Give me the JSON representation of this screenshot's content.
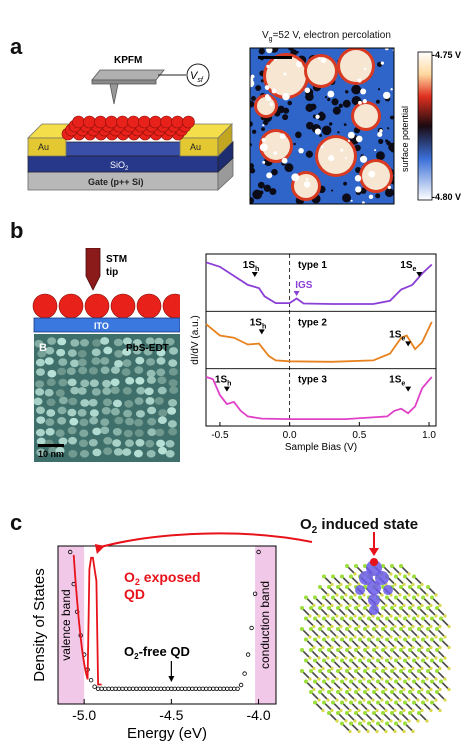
{
  "panel_a": {
    "letter": "a",
    "device": {
      "kpfm": "KPFM",
      "vsf_main": "V",
      "vsf_sub": "sf",
      "electrode_left": "Au",
      "electrode_right": "Au",
      "oxide_main": "SiO",
      "oxide_sub": "2",
      "gate": "Gate (p++ Si)"
    },
    "map": {
      "title_v": "V",
      "title_sub": "g",
      "title_rest": "=52 V, electron percolation",
      "ylabel": "surface potential",
      "scale_max": "-4.75 V",
      "scale_min": "-4.80 V"
    }
  },
  "panel_b": {
    "letter": "b",
    "stm": {
      "tip_line1": "STM",
      "tip_line2": "tip",
      "substrate": "ITO",
      "image_letter": "B",
      "image_label": "PbS-EDT",
      "scalebar": "10 nm"
    },
    "spectra": {
      "ylabel": "dI/dV (a.u.)",
      "xlabel": "Sample Bias (V)",
      "xticks": [
        "-0.5",
        "0.0",
        "0.5",
        "1.0"
      ],
      "peak_h_main": "1S",
      "peak_h_sub": "h",
      "peak_e_main": "1S",
      "peak_e_sub": "e",
      "igs": "IGS",
      "types": [
        "type 1",
        "type 2",
        "type 3"
      ],
      "colors": [
        "#8b3fd6",
        "#e8821e",
        "#e040c8"
      ]
    }
  },
  "panel_c": {
    "letter": "c",
    "annotation_main": "O",
    "annotation_sub": "2",
    "annotation_rest": " induced state",
    "dos": {
      "ylabel": "Density of States",
      "xlabel": "Energy (eV)",
      "xticks": [
        "-5.0",
        "-4.5",
        "-4.0"
      ],
      "valence": "valence band",
      "conduction": "conduction band",
      "exposed_main": "O",
      "exposed_sub": "2",
      "exposed_rest": " exposed",
      "exposed_line2": "QD",
      "free_main": "O",
      "free_sub": "2",
      "free_rest": "-free QD"
    }
  },
  "chart_data": {
    "type": "line",
    "xlabel": "Sample Bias (V)",
    "ylabel": "dI/dV (a.u.)",
    "xlim": [
      -0.6,
      1.05
    ],
    "series": [
      {
        "name": "type 1",
        "x": [
          -0.6,
          -0.5,
          -0.4,
          -0.3,
          -0.22,
          -0.18,
          -0.1,
          0.0,
          0.05,
          0.1,
          0.3,
          0.6,
          0.72,
          0.8,
          0.88,
          0.95,
          1.02
        ],
        "y": [
          0.95,
          0.85,
          0.65,
          0.45,
          0.38,
          0.2,
          0.05,
          0.05,
          0.15,
          0.04,
          0.03,
          0.03,
          0.1,
          0.35,
          0.45,
          0.7,
          0.9
        ]
      },
      {
        "name": "type 2",
        "x": [
          -0.6,
          -0.5,
          -0.4,
          -0.3,
          -0.22,
          -0.15,
          -0.1,
          0.0,
          0.3,
          0.6,
          0.72,
          0.8,
          0.84,
          0.9,
          0.95,
          1.02
        ],
        "y": [
          0.85,
          0.6,
          0.55,
          0.4,
          0.42,
          0.15,
          0.05,
          0.03,
          0.02,
          0.05,
          0.2,
          0.55,
          0.6,
          0.3,
          0.45,
          0.9
        ]
      },
      {
        "name": "type 3",
        "x": [
          -0.6,
          -0.55,
          -0.5,
          -0.45,
          -0.4,
          -0.35,
          -0.3,
          -0.2,
          0.0,
          0.4,
          0.7,
          0.75,
          0.8,
          0.85,
          0.9,
          0.95,
          1.02
        ],
        "y": [
          0.95,
          0.9,
          0.55,
          0.35,
          0.4,
          0.2,
          0.08,
          0.03,
          0.02,
          0.02,
          0.08,
          0.2,
          0.25,
          0.15,
          0.3,
          0.7,
          0.95
        ]
      }
    ]
  }
}
